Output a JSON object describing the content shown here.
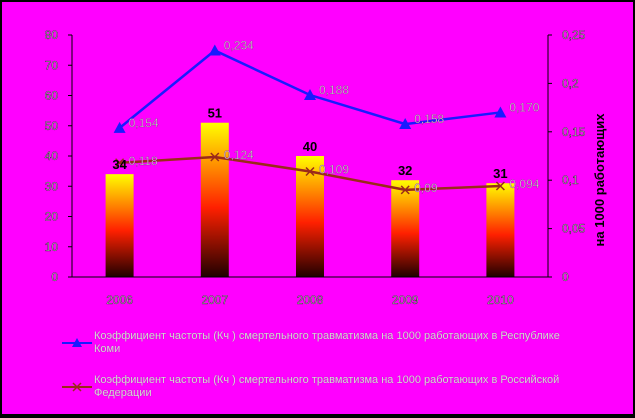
{
  "chart_data": {
    "type": "bar+line",
    "categories": [
      "2006",
      "2007",
      "2008",
      "2009",
      "2010"
    ],
    "bars": {
      "values": [
        34,
        51,
        40,
        32,
        31
      ],
      "data_labels": [
        "34",
        "51",
        "40",
        "32",
        "31"
      ]
    },
    "left_axis": {
      "ylim": [
        0,
        80
      ],
      "ticks": [
        "0",
        "10",
        "20",
        "30",
        "40",
        "50",
        "60",
        "70",
        "80"
      ],
      "label": ""
    },
    "right_axis": {
      "ylim": [
        0,
        0.25
      ],
      "ticks": [
        "0",
        "0,05",
        "0,1",
        "0,15",
        "0,2",
        "0,25"
      ],
      "label": "на 1000 работающих"
    },
    "series": [
      {
        "name": "Коэффициент частоты (Кч ) смертельного травматизма на 1000 работающих в Республике Коми",
        "values": [
          0.154,
          0.234,
          0.188,
          0.158,
          0.17
        ],
        "data_labels": [
          "0,154",
          "0,234",
          "0,188",
          "0,158",
          "0,170"
        ],
        "color": "#1a1aff",
        "marker": "triangle"
      },
      {
        "name": "Коэффициент частоты (Кч ) смертельного травматизма на 1000 работающих в Российской Федерации",
        "values": [
          0.118,
          0.124,
          0.109,
          0.09,
          0.094
        ],
        "data_labels": [
          "0,118",
          "0,124",
          "0,109",
          "0,09",
          "0,094"
        ],
        "color": "#9a2a1a",
        "marker": "x"
      }
    ],
    "colors": {
      "plot_background": "#ff00ff",
      "outer_background": "#000000",
      "bar_top": "#ffff00",
      "bar_mid": "#ff2000",
      "bar_bottom": "#200000",
      "axis_text": "#bbbbbb"
    },
    "grid": false,
    "legend_position": "bottom"
  }
}
